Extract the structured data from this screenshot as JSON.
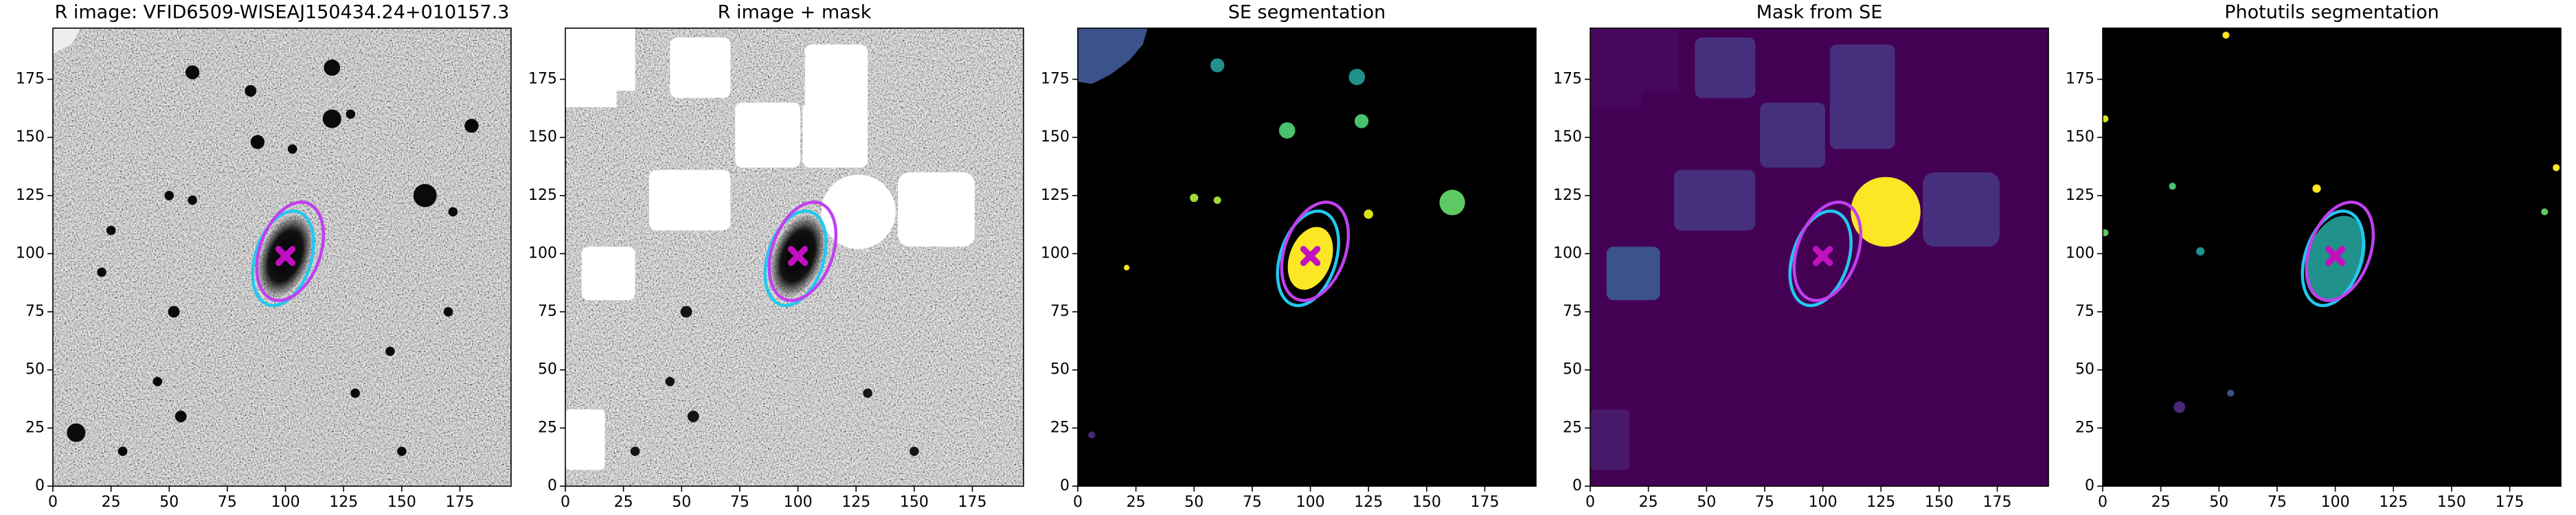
{
  "chart_data": [
    {
      "type": "image",
      "title": "R image: VFID6509-WISEAJ150434.24+010157.3",
      "xlim": [
        0,
        197
      ],
      "ylim": [
        0,
        197
      ],
      "xticks": [
        0,
        25,
        50,
        75,
        100,
        125,
        150,
        175
      ],
      "yticks": [
        0,
        25,
        50,
        75,
        100,
        125,
        150,
        175
      ]
    },
    {
      "type": "image",
      "title": "R image + mask",
      "xlim": [
        0,
        197
      ],
      "ylim": [
        0,
        197
      ],
      "xticks": [
        0,
        25,
        50,
        75,
        100,
        125,
        150,
        175
      ],
      "yticks": [
        0,
        25,
        50,
        75,
        100,
        125,
        150,
        175
      ]
    },
    {
      "type": "image",
      "title": "SE segmentation",
      "xlim": [
        0,
        197
      ],
      "ylim": [
        0,
        197
      ],
      "xticks": [
        0,
        25,
        50,
        75,
        100,
        125,
        150,
        175
      ],
      "yticks": [
        0,
        25,
        50,
        75,
        100,
        125,
        150,
        175
      ]
    },
    {
      "type": "image",
      "title": "Mask from SE",
      "xlim": [
        0,
        197
      ],
      "ylim": [
        0,
        197
      ],
      "xticks": [
        0,
        25,
        50,
        75,
        100,
        125,
        150,
        175
      ],
      "yticks": [
        0,
        25,
        50,
        75,
        100,
        125,
        150,
        175
      ]
    },
    {
      "type": "image",
      "title": "Photutils segmentation",
      "xlim": [
        0,
        197
      ],
      "ylim": [
        0,
        197
      ],
      "xticks": [
        0,
        25,
        50,
        75,
        100,
        125,
        150,
        175
      ],
      "yticks": [
        0,
        25,
        50,
        75,
        100,
        125,
        150,
        175
      ]
    }
  ]
}
